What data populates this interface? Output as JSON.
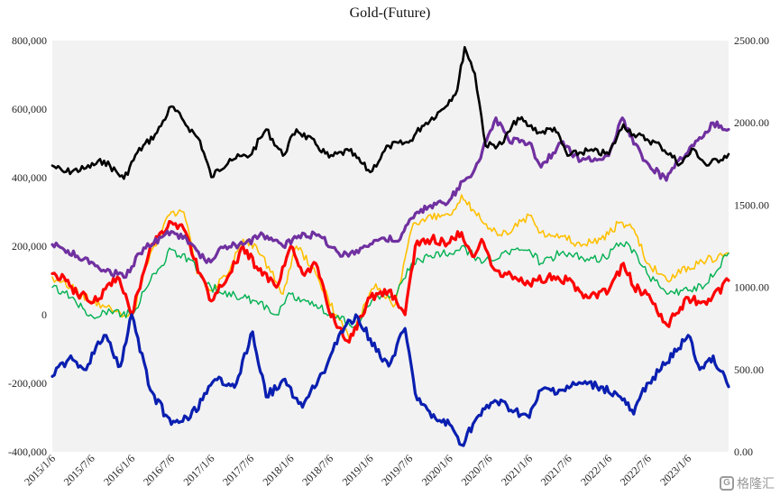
{
  "chart_data": {
    "type": "line",
    "title": "Gold-(Future)",
    "xlabel": "",
    "ylabel": "",
    "grid": false,
    "legend": "none",
    "y_left": {
      "range": [
        -400000,
        800000
      ],
      "ticks": [
        -400000,
        -200000,
        0,
        200000,
        400000,
        600000,
        800000
      ],
      "tick_labels": [
        "-400,000",
        "-200,000",
        "0",
        "200,000",
        "400,000",
        "600,000",
        "800,000"
      ]
    },
    "y_right": {
      "range": [
        0,
        2500
      ],
      "ticks": [
        0,
        500,
        1000,
        1500,
        2000,
        2500
      ],
      "tick_labels": [
        "0.00",
        "500.00",
        "1000.00",
        "1500.00",
        "2000.00",
        "2500.00"
      ]
    },
    "x_range": [
      "2015-01-06",
      "2023-07-11"
    ],
    "x_tick_labels": [
      "2015/1/6",
      "2015/7/6",
      "2016/1/6",
      "2016/7/6",
      "2017/1/6",
      "2017/7/6",
      "2018/1/6",
      "2018/7/6",
      "2019/1/6",
      "2019/7/6",
      "2020/1/6",
      "2020/7/6",
      "2021/1/6",
      "2021/7/6",
      "2022/1/6",
      "2022/7/6",
      "2023/1/6"
    ],
    "series": [
      {
        "color": "#000000",
        "axis": "right",
        "width": 2.6,
        "points": [
          [
            "2015-01-06",
            1740
          ],
          [
            "2015-03-01",
            1700
          ],
          [
            "2015-06-01",
            1720
          ],
          [
            "2015-09-01",
            1770
          ],
          [
            "2015-12-01",
            1660
          ],
          [
            "2016-02-01",
            1820
          ],
          [
            "2016-05-01",
            1940
          ],
          [
            "2016-07-06",
            2100
          ],
          [
            "2016-09-01",
            2010
          ],
          [
            "2016-11-15",
            1890
          ],
          [
            "2017-01-06",
            1670
          ],
          [
            "2017-04-01",
            1780
          ],
          [
            "2017-07-01",
            1800
          ],
          [
            "2017-09-15",
            1960
          ],
          [
            "2017-12-01",
            1800
          ],
          [
            "2018-02-01",
            1960
          ],
          [
            "2018-05-01",
            1870
          ],
          [
            "2018-07-01",
            1790
          ],
          [
            "2018-10-01",
            1830
          ],
          [
            "2019-01-06",
            1700
          ],
          [
            "2019-04-01",
            1860
          ],
          [
            "2019-07-01",
            1880
          ],
          [
            "2019-09-01",
            1980
          ],
          [
            "2019-12-01",
            2080
          ],
          [
            "2020-02-10",
            2200
          ],
          [
            "2020-03-15",
            2460
          ],
          [
            "2020-05-01",
            2300
          ],
          [
            "2020-06-20",
            1860
          ],
          [
            "2020-09-01",
            1870
          ],
          [
            "2020-11-15",
            2030
          ],
          [
            "2021-01-06",
            1980
          ],
          [
            "2021-03-01",
            1940
          ],
          [
            "2021-05-01",
            1970
          ],
          [
            "2021-07-01",
            1800
          ],
          [
            "2021-10-01",
            1830
          ],
          [
            "2022-01-06",
            1810
          ],
          [
            "2022-03-15",
            1990
          ],
          [
            "2022-05-01",
            1930
          ],
          [
            "2022-07-01",
            1900
          ],
          [
            "2022-09-01",
            1860
          ],
          [
            "2022-12-01",
            1750
          ],
          [
            "2023-02-01",
            1840
          ],
          [
            "2023-04-01",
            1740
          ],
          [
            "2023-07-11",
            1810
          ]
        ]
      },
      {
        "color": "#7030a0",
        "axis": "right",
        "width": 3.2,
        "points": [
          [
            "2015-01-06",
            1260
          ],
          [
            "2015-03-01",
            1230
          ],
          [
            "2015-05-01",
            1190
          ],
          [
            "2015-08-01",
            1130
          ],
          [
            "2015-12-01",
            1060
          ],
          [
            "2016-03-01",
            1240
          ],
          [
            "2016-07-06",
            1340
          ],
          [
            "2016-10-01",
            1270
          ],
          [
            "2016-12-15",
            1150
          ],
          [
            "2017-03-01",
            1240
          ],
          [
            "2017-06-01",
            1260
          ],
          [
            "2017-09-01",
            1320
          ],
          [
            "2017-12-01",
            1250
          ],
          [
            "2018-03-01",
            1330
          ],
          [
            "2018-06-01",
            1300
          ],
          [
            "2018-09-01",
            1190
          ],
          [
            "2018-12-01",
            1240
          ],
          [
            "2019-03-01",
            1300
          ],
          [
            "2019-05-15",
            1280
          ],
          [
            "2019-07-15",
            1420
          ],
          [
            "2019-10-01",
            1490
          ],
          [
            "2020-01-06",
            1530
          ],
          [
            "2020-03-15",
            1650
          ],
          [
            "2020-05-01",
            1720
          ],
          [
            "2020-08-06",
            2030
          ],
          [
            "2020-10-01",
            1900
          ],
          [
            "2021-01-06",
            1880
          ],
          [
            "2021-03-01",
            1730
          ],
          [
            "2021-06-01",
            1880
          ],
          [
            "2021-09-01",
            1770
          ],
          [
            "2022-01-06",
            1800
          ],
          [
            "2022-03-10",
            2030
          ],
          [
            "2022-05-01",
            1870
          ],
          [
            "2022-07-01",
            1760
          ],
          [
            "2022-09-28",
            1650
          ],
          [
            "2022-12-01",
            1790
          ],
          [
            "2023-02-01",
            1860
          ],
          [
            "2023-05-01",
            2000
          ],
          [
            "2023-07-11",
            1960
          ]
        ]
      },
      {
        "color": "#ffc000",
        "axis": "left",
        "width": 1.6,
        "points": [
          [
            "2015-01-06",
            110000
          ],
          [
            "2015-04-01",
            80000
          ],
          [
            "2015-07-01",
            40000
          ],
          [
            "2015-10-01",
            20000
          ],
          [
            "2016-01-06",
            -10000
          ],
          [
            "2016-04-01",
            180000
          ],
          [
            "2016-07-06",
            300000
          ],
          [
            "2016-09-01",
            300000
          ],
          [
            "2016-11-01",
            120000
          ],
          [
            "2017-01-06",
            70000
          ],
          [
            "2017-04-01",
            130000
          ],
          [
            "2017-06-01",
            220000
          ],
          [
            "2017-08-01",
            200000
          ],
          [
            "2017-12-01",
            60000
          ],
          [
            "2018-02-01",
            200000
          ],
          [
            "2018-05-01",
            120000
          ],
          [
            "2018-08-01",
            0
          ],
          [
            "2018-10-01",
            -70000
          ],
          [
            "2019-02-01",
            90000
          ],
          [
            "2019-05-01",
            30000
          ],
          [
            "2019-07-15",
            250000
          ],
          [
            "2019-10-01",
            290000
          ],
          [
            "2020-01-06",
            290000
          ],
          [
            "2020-03-01",
            350000
          ],
          [
            "2020-05-01",
            300000
          ],
          [
            "2020-07-01",
            250000
          ],
          [
            "2020-09-01",
            230000
          ],
          [
            "2021-01-06",
            290000
          ],
          [
            "2021-03-01",
            240000
          ],
          [
            "2021-06-01",
            230000
          ],
          [
            "2021-09-01",
            200000
          ],
          [
            "2021-12-01",
            220000
          ],
          [
            "2022-03-01",
            270000
          ],
          [
            "2022-05-01",
            250000
          ],
          [
            "2022-07-01",
            150000
          ],
          [
            "2022-10-01",
            100000
          ],
          [
            "2023-01-06",
            140000
          ],
          [
            "2023-04-01",
            160000
          ],
          [
            "2023-07-11",
            180000
          ]
        ]
      },
      {
        "color": "#00b050",
        "axis": "left",
        "width": 1.4,
        "points": [
          [
            "2015-01-06",
            80000
          ],
          [
            "2015-04-01",
            50000
          ],
          [
            "2015-07-01",
            0
          ],
          [
            "2015-10-01",
            10000
          ],
          [
            "2016-01-06",
            0
          ],
          [
            "2016-04-01",
            100000
          ],
          [
            "2016-07-06",
            190000
          ],
          [
            "2016-10-01",
            160000
          ],
          [
            "2016-12-15",
            90000
          ],
          [
            "2017-03-01",
            60000
          ],
          [
            "2017-06-01",
            50000
          ],
          [
            "2017-08-01",
            40000
          ],
          [
            "2017-11-01",
            0
          ],
          [
            "2018-01-06",
            60000
          ],
          [
            "2018-05-01",
            30000
          ],
          [
            "2018-08-01",
            -10000
          ],
          [
            "2018-11-01",
            -30000
          ],
          [
            "2019-02-01",
            60000
          ],
          [
            "2019-05-01",
            50000
          ],
          [
            "2019-07-15",
            150000
          ],
          [
            "2019-10-01",
            170000
          ],
          [
            "2020-01-06",
            180000
          ],
          [
            "2020-03-01",
            200000
          ],
          [
            "2020-06-01",
            150000
          ],
          [
            "2020-09-01",
            180000
          ],
          [
            "2021-01-06",
            190000
          ],
          [
            "2021-03-01",
            150000
          ],
          [
            "2021-06-01",
            180000
          ],
          [
            "2021-09-01",
            170000
          ],
          [
            "2021-12-01",
            160000
          ],
          [
            "2022-03-01",
            210000
          ],
          [
            "2022-05-01",
            190000
          ],
          [
            "2022-07-01",
            120000
          ],
          [
            "2022-10-01",
            60000
          ],
          [
            "2023-01-06",
            70000
          ],
          [
            "2023-04-01",
            90000
          ],
          [
            "2023-07-11",
            180000
          ]
        ]
      },
      {
        "color": "#ff0000",
        "axis": "left",
        "width": 3.2,
        "points": [
          [
            "2015-01-06",
            120000
          ],
          [
            "2015-03-01",
            110000
          ],
          [
            "2015-05-01",
            60000
          ],
          [
            "2015-08-01",
            40000
          ],
          [
            "2015-11-01",
            110000
          ],
          [
            "2016-01-06",
            0
          ],
          [
            "2016-04-01",
            200000
          ],
          [
            "2016-07-06",
            270000
          ],
          [
            "2016-09-01",
            250000
          ],
          [
            "2016-11-15",
            120000
          ],
          [
            "2017-01-06",
            40000
          ],
          [
            "2017-04-01",
            120000
          ],
          [
            "2017-06-01",
            200000
          ],
          [
            "2017-08-01",
            140000
          ],
          [
            "2017-11-01",
            80000
          ],
          [
            "2018-01-06",
            200000
          ],
          [
            "2018-03-01",
            120000
          ],
          [
            "2018-05-01",
            150000
          ],
          [
            "2018-07-01",
            10000
          ],
          [
            "2018-10-01",
            -80000
          ],
          [
            "2019-01-06",
            50000
          ],
          [
            "2019-04-01",
            70000
          ],
          [
            "2019-06-15",
            0
          ],
          [
            "2019-08-01",
            200000
          ],
          [
            "2019-10-15",
            220000
          ],
          [
            "2020-01-06",
            210000
          ],
          [
            "2020-03-01",
            240000
          ],
          [
            "2020-04-20",
            170000
          ],
          [
            "2020-06-01",
            220000
          ],
          [
            "2020-08-01",
            130000
          ],
          [
            "2020-11-01",
            110000
          ],
          [
            "2021-01-06",
            90000
          ],
          [
            "2021-04-01",
            110000
          ],
          [
            "2021-07-01",
            100000
          ],
          [
            "2021-10-01",
            50000
          ],
          [
            "2022-01-06",
            70000
          ],
          [
            "2022-03-15",
            150000
          ],
          [
            "2022-05-01",
            80000
          ],
          [
            "2022-07-01",
            60000
          ],
          [
            "2022-10-01",
            -30000
          ],
          [
            "2023-01-06",
            50000
          ],
          [
            "2023-04-01",
            30000
          ],
          [
            "2023-07-11",
            100000
          ]
        ]
      },
      {
        "color": "#0a1fb0",
        "axis": "left",
        "width": 3.2,
        "points": [
          [
            "2015-01-06",
            -180000
          ],
          [
            "2015-04-01",
            -120000
          ],
          [
            "2015-06-01",
            -160000
          ],
          [
            "2015-09-01",
            -60000
          ],
          [
            "2015-11-15",
            -150000
          ],
          [
            "2016-01-06",
            0
          ],
          [
            "2016-04-01",
            -220000
          ],
          [
            "2016-07-06",
            -320000
          ],
          [
            "2016-10-01",
            -300000
          ],
          [
            "2016-12-15",
            -230000
          ],
          [
            "2017-02-01",
            -190000
          ],
          [
            "2017-05-01",
            -200000
          ],
          [
            "2017-07-15",
            -50000
          ],
          [
            "2017-09-15",
            -240000
          ],
          [
            "2017-12-01",
            -190000
          ],
          [
            "2018-03-01",
            -270000
          ],
          [
            "2018-06-01",
            -170000
          ],
          [
            "2018-08-15",
            -60000
          ],
          [
            "2018-11-01",
            0
          ],
          [
            "2019-01-06",
            -70000
          ],
          [
            "2019-04-01",
            -150000
          ],
          [
            "2019-06-15",
            -40000
          ],
          [
            "2019-08-01",
            -230000
          ],
          [
            "2019-10-15",
            -300000
          ],
          [
            "2020-01-06",
            -320000
          ],
          [
            "2020-03-01",
            -380000
          ],
          [
            "2020-05-01",
            -310000
          ],
          [
            "2020-08-01",
            -250000
          ],
          [
            "2020-11-01",
            -280000
          ],
          [
            "2021-01-06",
            -300000
          ],
          [
            "2021-03-01",
            -220000
          ],
          [
            "2021-06-01",
            -220000
          ],
          [
            "2021-09-01",
            -200000
          ],
          [
            "2021-12-01",
            -210000
          ],
          [
            "2022-03-01",
            -240000
          ],
          [
            "2022-05-01",
            -290000
          ],
          [
            "2022-07-01",
            -200000
          ],
          [
            "2022-10-01",
            -140000
          ],
          [
            "2023-01-06",
            -60000
          ],
          [
            "2023-03-01",
            -160000
          ],
          [
            "2023-05-01",
            -120000
          ],
          [
            "2023-07-11",
            -210000
          ]
        ]
      }
    ]
  },
  "watermark": {
    "logo": "G",
    "text": "格隆汇"
  }
}
